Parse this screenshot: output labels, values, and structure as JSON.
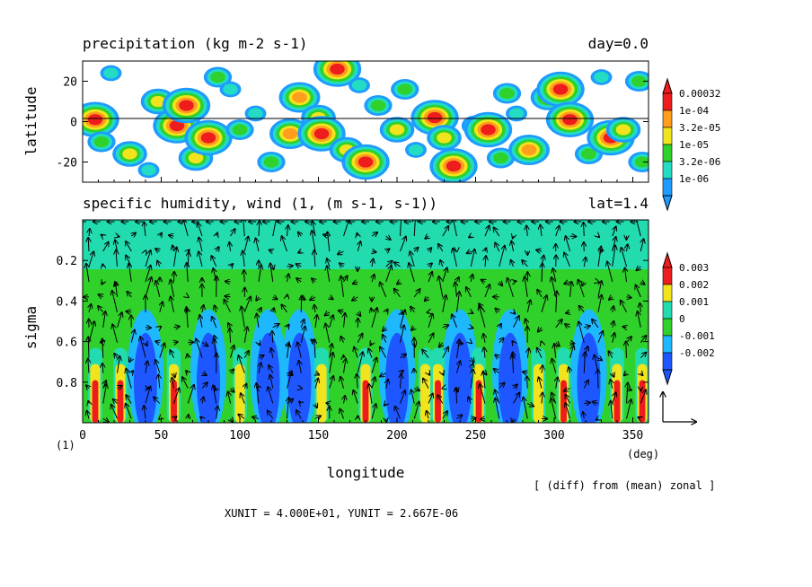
{
  "colors": {
    "c1": "#1e9bff",
    "c2": "#22dcc4",
    "c3": "#2fd12a",
    "c4": "#f2e41c",
    "c5": "#ff9d1c",
    "c6": "#ee1c1c",
    "q_n2": "#1e57ff",
    "q_n1": "#1eb8ff",
    "q_0": "#2fd12a",
    "q_1": "#22dcb0",
    "q_2": "#f2e41c",
    "q_3": "#ee1c1c"
  },
  "chart_data": [
    {
      "type": "heatmap",
      "title": "precipitation (kg m-2 s-1)",
      "right_title": "day=0.0",
      "ylabel": "latitude",
      "xlim": [
        0,
        360
      ],
      "ylim": [
        -30,
        30
      ],
      "y_ticks": [
        "20",
        "0",
        "-20"
      ],
      "y_tick_values": [
        20,
        0,
        -20
      ],
      "colorbar": [
        "0.00032",
        "1e-04",
        "3.2e-05",
        "1e-05",
        "3.2e-06",
        "1e-06"
      ],
      "levels": [
        1e-06,
        3.2e-06,
        1e-05,
        3.2e-05,
        0.0001,
        0.00032
      ],
      "cells": [
        {
          "lon": 8,
          "lat": 1,
          "level": 6
        },
        {
          "lon": 12,
          "lat": -10,
          "level": 3
        },
        {
          "lon": 18,
          "lat": 24,
          "level": 2
        },
        {
          "lon": 30,
          "lat": -16,
          "level": 4
        },
        {
          "lon": 48,
          "lat": 10,
          "level": 4
        },
        {
          "lon": 60,
          "lat": -2,
          "level": 6
        },
        {
          "lon": 66,
          "lat": 8,
          "level": 6
        },
        {
          "lon": 72,
          "lat": -18,
          "level": 4
        },
        {
          "lon": 80,
          "lat": -8,
          "level": 6
        },
        {
          "lon": 86,
          "lat": 22,
          "level": 3
        },
        {
          "lon": 100,
          "lat": -4,
          "level": 3
        },
        {
          "lon": 110,
          "lat": 4,
          "level": 2
        },
        {
          "lon": 120,
          "lat": -20,
          "level": 3
        },
        {
          "lon": 132,
          "lat": -6,
          "level": 5
        },
        {
          "lon": 138,
          "lat": 12,
          "level": 5
        },
        {
          "lon": 150,
          "lat": 2,
          "level": 4
        },
        {
          "lon": 152,
          "lat": -6,
          "level": 6
        },
        {
          "lon": 162,
          "lat": 26,
          "level": 6
        },
        {
          "lon": 168,
          "lat": -14,
          "level": 4
        },
        {
          "lon": 180,
          "lat": -20,
          "level": 6
        },
        {
          "lon": 188,
          "lat": 8,
          "level": 3
        },
        {
          "lon": 200,
          "lat": -4,
          "level": 4
        },
        {
          "lon": 205,
          "lat": 16,
          "level": 3
        },
        {
          "lon": 224,
          "lat": 2,
          "level": 6
        },
        {
          "lon": 230,
          "lat": -8,
          "level": 4
        },
        {
          "lon": 236,
          "lat": -22,
          "level": 6
        },
        {
          "lon": 250,
          "lat": -2,
          "level": 3
        },
        {
          "lon": 258,
          "lat": -4,
          "level": 6
        },
        {
          "lon": 266,
          "lat": -18,
          "level": 3
        },
        {
          "lon": 270,
          "lat": 14,
          "level": 3
        },
        {
          "lon": 284,
          "lat": -14,
          "level": 5
        },
        {
          "lon": 296,
          "lat": 12,
          "level": 4
        },
        {
          "lon": 304,
          "lat": 16,
          "level": 6
        },
        {
          "lon": 310,
          "lat": 1,
          "level": 6
        },
        {
          "lon": 322,
          "lat": -16,
          "level": 3
        },
        {
          "lon": 336,
          "lat": -8,
          "level": 6
        },
        {
          "lon": 344,
          "lat": -4,
          "level": 4
        },
        {
          "lon": 354,
          "lat": 20,
          "level": 3
        },
        {
          "lon": 356,
          "lat": -20,
          "level": 3
        },
        {
          "lon": 42,
          "lat": -24,
          "level": 2
        },
        {
          "lon": 94,
          "lat": 16,
          "level": 2
        },
        {
          "lon": 176,
          "lat": 18,
          "level": 2
        },
        {
          "lon": 212,
          "lat": -14,
          "level": 2
        },
        {
          "lon": 276,
          "lat": 4,
          "level": 2
        },
        {
          "lon": 330,
          "lat": 22,
          "level": 2
        }
      ]
    },
    {
      "type": "heatmap",
      "title": "specific humidity, wind (1, (m s-1, s-1))",
      "right_title": "lat=1.4",
      "xlabel": "longitude",
      "ylabel": "sigma",
      "xlim": [
        0,
        360
      ],
      "ylim": [
        1.0,
        0.0
      ],
      "x_ticks": [
        "0",
        "50",
        "100",
        "150",
        "200",
        "250",
        "300",
        "350"
      ],
      "x_tick_values": [
        0,
        50,
        100,
        150,
        200,
        250,
        300,
        350
      ],
      "y_ticks": [
        "0.2",
        "0.4",
        "0.6",
        "0.8"
      ],
      "y_tick_values": [
        0.2,
        0.4,
        0.6,
        0.8
      ],
      "colorbar": [
        "0.003",
        "0.002",
        "0.001",
        "0",
        "-0.001",
        "-0.002"
      ],
      "levels": [
        -0.002,
        -0.001,
        0,
        0.001,
        0.002,
        0.003
      ],
      "x_unit_corner": "(deg)",
      "y_unit_corner": "(1)",
      "difference_note": "[ (diff) from (mean) zonal ]",
      "units_line": "XUNIT = 4.000E+01, YUNIT = 2.667E-06",
      "warm_columns": [
        {
          "lon": 8,
          "level": 3
        },
        {
          "lon": 24,
          "level": 3
        },
        {
          "lon": 58,
          "level": 3
        },
        {
          "lon": 100,
          "level": 2
        },
        {
          "lon": 152,
          "level": 2
        },
        {
          "lon": 180,
          "level": 3
        },
        {
          "lon": 218,
          "level": 2
        },
        {
          "lon": 226,
          "level": 3
        },
        {
          "lon": 252,
          "level": 3
        },
        {
          "lon": 290,
          "level": 2
        },
        {
          "lon": 306,
          "level": 3
        },
        {
          "lon": 340,
          "level": 3
        },
        {
          "lon": 356,
          "level": 3
        }
      ],
      "dry_columns": [
        {
          "lon": 40,
          "level": -2
        },
        {
          "lon": 80,
          "level": -2
        },
        {
          "lon": 118,
          "level": -2
        },
        {
          "lon": 138,
          "level": -2
        },
        {
          "lon": 200,
          "level": -2
        },
        {
          "lon": 240,
          "level": -2
        },
        {
          "lon": 272,
          "level": -2
        },
        {
          "lon": 322,
          "level": -2
        }
      ]
    }
  ]
}
